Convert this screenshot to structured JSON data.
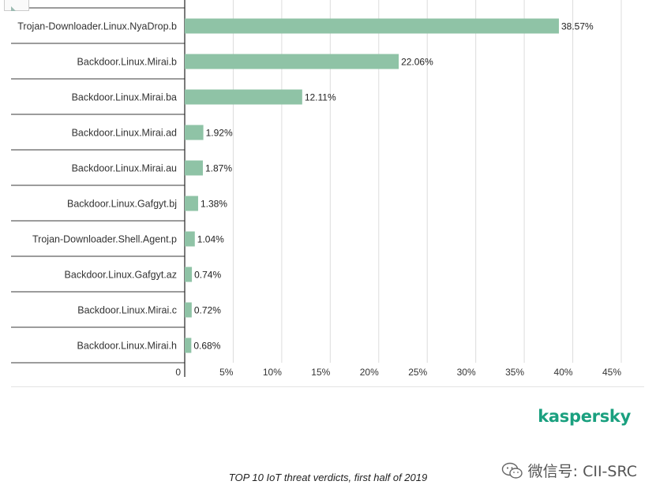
{
  "chart_data": {
    "type": "bar",
    "orientation": "horizontal",
    "categories": [
      "Trojan-Downloader.Linux.NyaDrop.b",
      "Backdoor.Linux.Mirai.b",
      "Backdoor.Linux.Mirai.ba",
      "Backdoor.Linux.Mirai.ad",
      "Backdoor.Linux.Mirai.au",
      "Backdoor.Linux.Gafgyt.bj",
      "Trojan-Downloader.Shell.Agent.p",
      "Backdoor.Linux.Gafgyt.az",
      "Backdoor.Linux.Mirai.c",
      "Backdoor.Linux.Mirai.h"
    ],
    "values": [
      38.57,
      22.06,
      12.11,
      1.92,
      1.87,
      1.38,
      1.04,
      0.74,
      0.72,
      0.68
    ],
    "value_labels": [
      "38.57%",
      "22.06%",
      "12.11%",
      "1.92%",
      "1.87%",
      "1.38%",
      "1.04%",
      "0.74%",
      "0.72%",
      "0.68%"
    ],
    "xticks": [
      0,
      5,
      10,
      15,
      20,
      25,
      30,
      35,
      40,
      45
    ],
    "xtick_labels": [
      "0",
      "5%",
      "10%",
      "15%",
      "20%",
      "25%",
      "30%",
      "35%",
      "40%",
      "45%"
    ],
    "xlim": [
      0,
      45
    ],
    "grid": true,
    "bar_color": "#8fc3a6",
    "title": "TOP 10 IoT threat verdicts, first half of 2019"
  },
  "brand": "kaspersky",
  "brand_color": "#1aa07f",
  "watermark": {
    "text": "微信号: CII-SRC",
    "icon": "wechat-icon"
  }
}
